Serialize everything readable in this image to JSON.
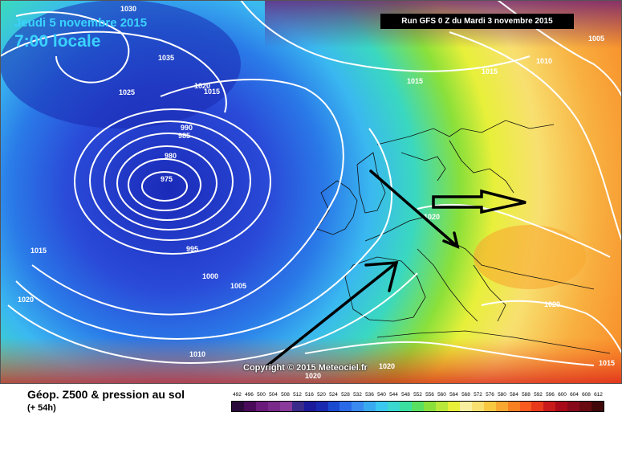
{
  "header": {
    "date": "Jeudi 5 novembre 2015",
    "time": "7:00 locale",
    "run": "Run GFS 0 Z du Mardi 3 novembre 2015"
  },
  "copyright": "Copyright © 2015 Meteociel.fr",
  "legend": {
    "title": "Géop. Z500 & pression au sol",
    "subtitle": "(+ 54h)",
    "scale": [
      "492",
      "496",
      "500",
      "504",
      "508",
      "512",
      "516",
      "520",
      "524",
      "528",
      "532",
      "536",
      "540",
      "544",
      "548",
      "552",
      "556",
      "560",
      "564",
      "568",
      "572",
      "576",
      "580",
      "584",
      "588",
      "592",
      "596",
      "600",
      "604",
      "608",
      "612"
    ],
    "colors": [
      "#2a0a3a",
      "#4a0a5a",
      "#6a1a7a",
      "#7a2a8a",
      "#8a3a9a",
      "#3a2a8a",
      "#1a1a9a",
      "#1a2ab0",
      "#1a4ad0",
      "#2a6ae8",
      "#3a8af0",
      "#3aaaf0",
      "#3ac8f0",
      "#3ad8d0",
      "#3ae0a0",
      "#5ae060",
      "#8ae03a",
      "#b8e83a",
      "#e8f03a",
      "#f8f0a0",
      "#f8e070",
      "#f8c840",
      "#f8a830",
      "#f88020",
      "#f85a20",
      "#e83a1a",
      "#c81a1a",
      "#a80a1a",
      "#880a1a",
      "#680a10",
      "#400808"
    ]
  },
  "isobars": [
    {
      "label": "1030"
    },
    {
      "label": "1035"
    },
    {
      "label": "1025"
    },
    {
      "label": "1020"
    },
    {
      "label": "1015"
    },
    {
      "label": "990"
    },
    {
      "label": "985"
    },
    {
      "label": "980"
    },
    {
      "label": "975"
    },
    {
      "label": "995"
    },
    {
      "label": "1000"
    },
    {
      "label": "1005"
    },
    {
      "label": "1010"
    },
    {
      "label": "1015"
    },
    {
      "label": "1020"
    },
    {
      "label": "1015"
    },
    {
      "label": "1015"
    },
    {
      "label": "1010"
    },
    {
      "label": "1005"
    },
    {
      "label": "1020"
    },
    {
      "label": "1020"
    },
    {
      "label": "1020"
    },
    {
      "label": "1015"
    },
    {
      "label": "1020"
    }
  ],
  "icons": {
    "arrows": "trend-arrow-icon"
  }
}
